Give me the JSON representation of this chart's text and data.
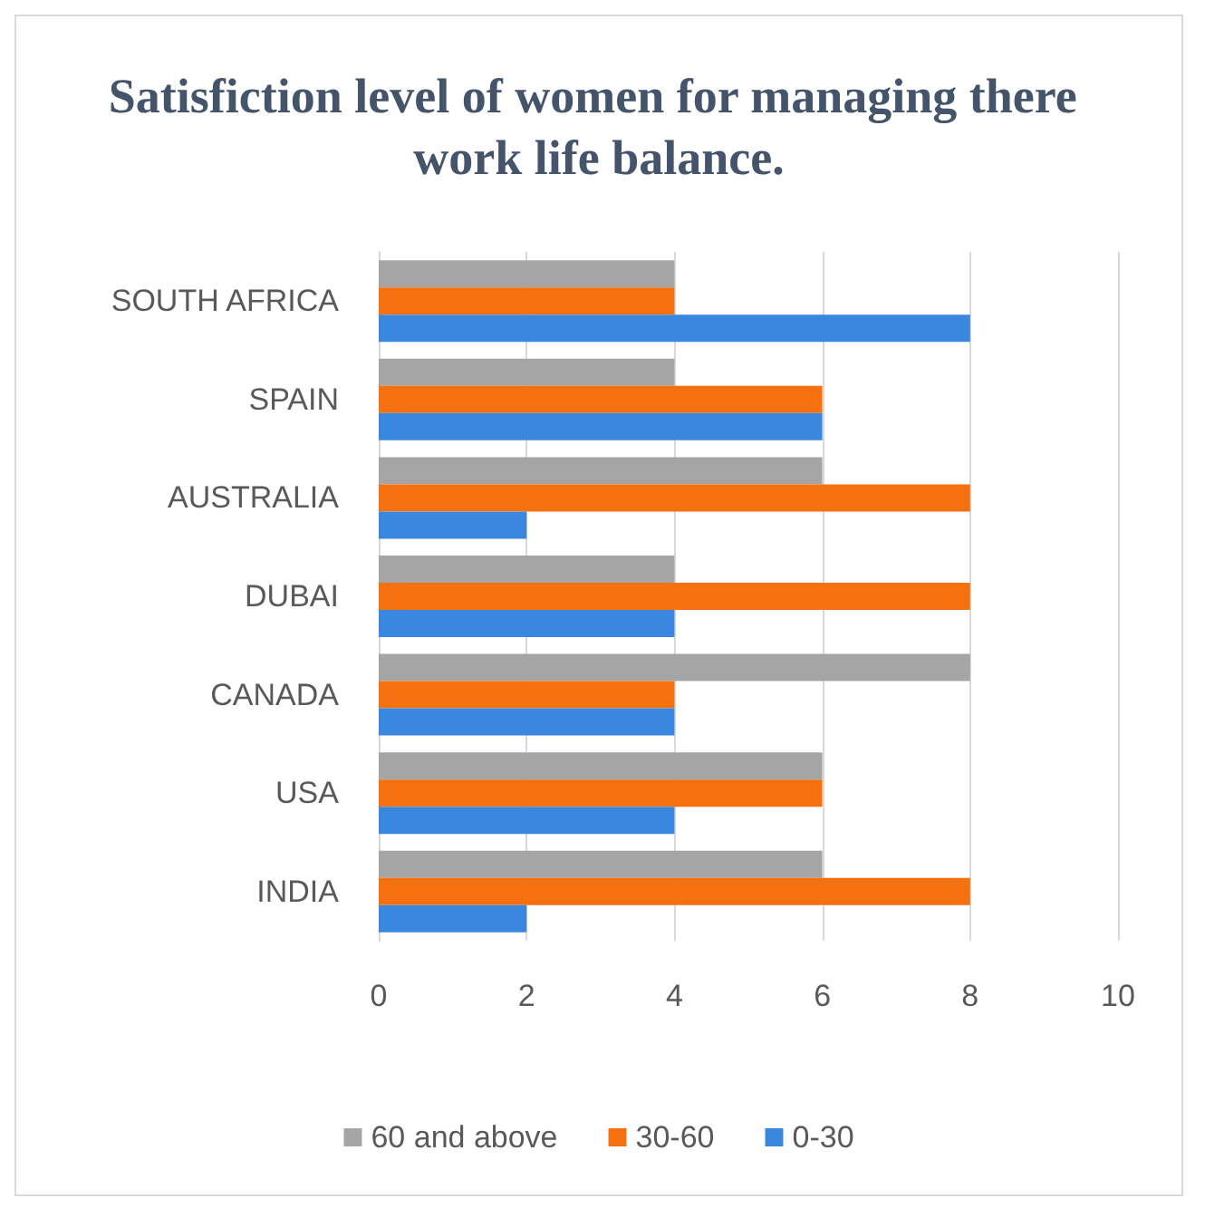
{
  "chart_data": {
    "type": "bar",
    "orientation": "horizontal",
    "title": "Satisfiction level of women for managing there work life balance.",
    "categories": [
      "SOUTH AFRICA",
      "SPAIN",
      "AUSTRALIA",
      "DUBAI",
      "CANADA",
      "USA",
      "INDIA"
    ],
    "series": [
      {
        "name": "60 and above",
        "color": "#a5a5a5",
        "values": [
          4,
          4,
          6,
          4,
          8,
          6,
          6
        ]
      },
      {
        "name": "30-60",
        "color": "#f5700f",
        "values": [
          4,
          6,
          8,
          8,
          4,
          6,
          8
        ]
      },
      {
        "name": "0-30",
        "color": "#3a87e0",
        "values": [
          8,
          6,
          2,
          4,
          4,
          4,
          2
        ]
      }
    ],
    "xlim": [
      0,
      10
    ],
    "xticks": [
      0,
      2,
      4,
      6,
      8,
      10
    ],
    "grid": "x",
    "legend": "bottom"
  }
}
